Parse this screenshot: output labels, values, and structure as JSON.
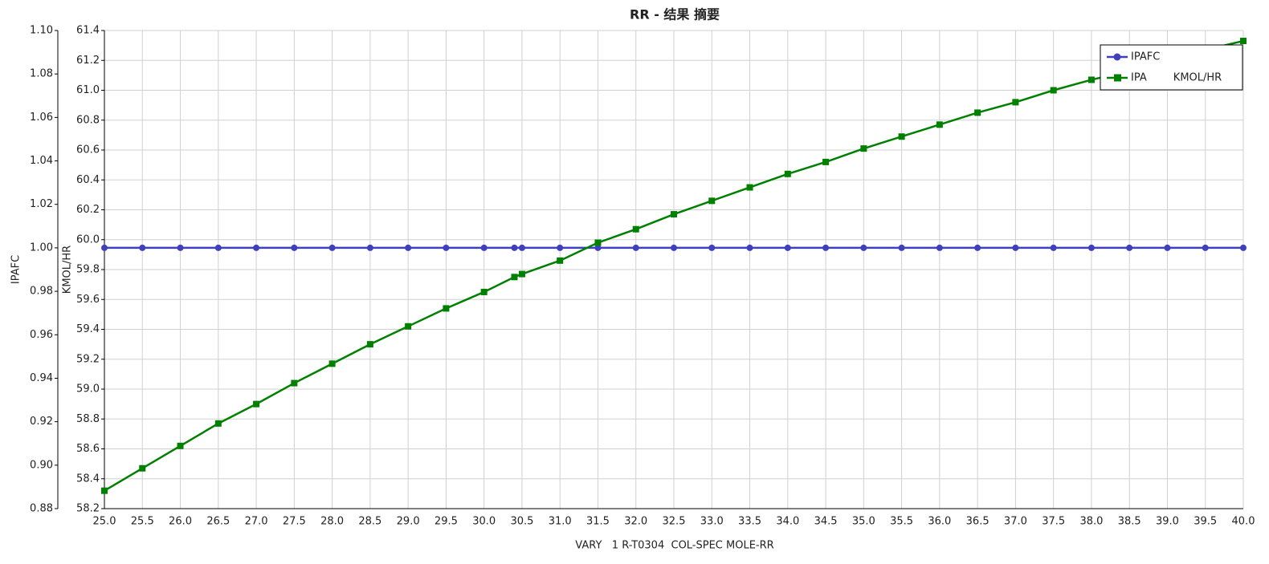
{
  "chart_data": {
    "type": "line",
    "title": "RR - 结果 摘要",
    "x_label": "VARY   1 R-T0304  COL-SPEC MOLE-RR",
    "y_label": "IPAFC",
    "y2_label": "KMOL/HR",
    "x": [
      25,
      25.5,
      26,
      26.5,
      27,
      27.5,
      28,
      28.5,
      29,
      29.5,
      30,
      30.4,
      30.5,
      31,
      31.5,
      32,
      32.5,
      33,
      33.5,
      34,
      34.5,
      35,
      35.5,
      36,
      36.5,
      37,
      37.5,
      38,
      38.5,
      39,
      39.5,
      40
    ],
    "series": [
      {
        "name": "IPAFC",
        "color": "#3f3fbf",
        "marker": "circle",
        "axis": "y",
        "values": [
          1.0,
          1.0,
          1.0,
          1.0,
          1.0,
          1.0,
          1.0,
          1.0,
          1.0,
          1.0,
          1.0,
          1.0,
          1.0,
          1.0,
          1.0,
          1.0,
          1.0,
          1.0,
          1.0,
          1.0,
          1.0,
          1.0,
          1.0,
          1.0,
          1.0,
          1.0,
          1.0,
          1.0,
          1.0,
          1.0,
          1.0,
          1.0
        ]
      },
      {
        "name": "IPA        KMOL/HR",
        "color": "#008000",
        "marker": "square",
        "axis": "y2",
        "values": [
          58.32,
          58.47,
          58.62,
          58.77,
          58.9,
          59.04,
          59.17,
          59.3,
          59.42,
          59.54,
          59.65,
          59.75,
          59.77,
          59.86,
          59.98,
          60.07,
          60.17,
          60.26,
          60.35,
          60.44,
          60.52,
          60.61,
          60.69,
          60.77,
          60.85,
          60.92,
          61.0,
          61.07,
          61.13,
          61.2,
          61.27,
          61.33
        ]
      }
    ],
    "xlim": [
      25,
      40
    ],
    "xticks": [
      {
        "value": 25,
        "label": "25.0"
      },
      25.5,
      {
        "value": 26,
        "label": "26.0"
      },
      26.5,
      {
        "value": 27,
        "label": "27.0"
      },
      27.5,
      {
        "value": 28,
        "label": "28.0"
      },
      28.5,
      {
        "value": 29,
        "label": "29.0"
      },
      29.5,
      {
        "value": 30,
        "label": "30.0"
      },
      30.5,
      {
        "value": 31,
        "label": "31.0"
      },
      31.5,
      {
        "value": 32,
        "label": "32.0"
      },
      32.5,
      {
        "value": 33,
        "label": "33.0"
      },
      33.5,
      {
        "value": 34,
        "label": "34.0"
      },
      34.5,
      {
        "value": 35,
        "label": "35.0"
      },
      35.5,
      {
        "value": 36,
        "label": "36.0"
      },
      36.5,
      {
        "value": 37,
        "label": "37.0"
      },
      37.5,
      {
        "value": 38,
        "label": "38.0"
      },
      38.5,
      {
        "value": 39,
        "label": "39.0"
      },
      39.5,
      {
        "value": 40,
        "label": "40.0"
      }
    ],
    "ylim": [
      0.88,
      1.1
    ],
    "yticks": [
      0.88,
      {
        "value": 0.9,
        "label": "0.90"
      },
      0.92,
      0.94,
      0.96,
      0.98,
      {
        "value": 1.0,
        "label": "1.00"
      },
      1.02,
      1.04,
      1.06,
      1.08,
      {
        "value": 1.1,
        "label": "1.10"
      }
    ],
    "y2lim": [
      58.2,
      61.4
    ],
    "y2ticks": [
      58.2,
      58.4,
      58.6,
      58.8,
      {
        "value": 59,
        "label": "59.0"
      },
      59.2,
      59.4,
      59.6,
      59.8,
      {
        "value": 60,
        "label": "60.0"
      },
      60.2,
      60.4,
      60.6,
      60.8,
      {
        "value": 61,
        "label": "61.0"
      },
      61.2,
      61.4
    ],
    "grid": true,
    "legend": "upper right"
  }
}
